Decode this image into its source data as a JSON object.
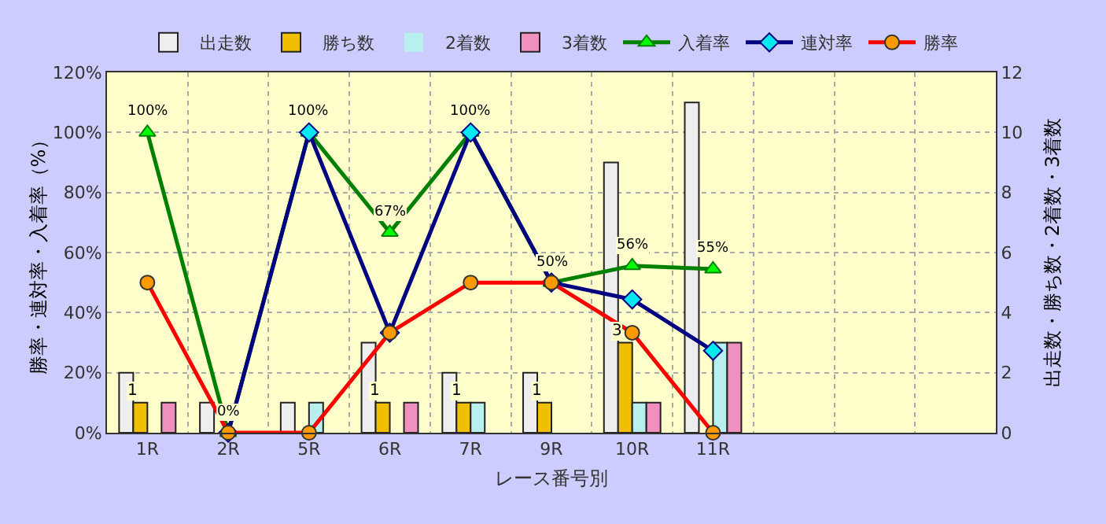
{
  "chart_data": {
    "type": "bar",
    "categories": [
      "1R",
      "2R",
      "5R",
      "6R",
      "7R",
      "9R",
      "10R",
      "11R",
      null,
      null,
      null
    ],
    "xlabel": "レース番号別",
    "ylabel": "勝率・連対率・入着率（%）",
    "y2label": "出走数・勝ち数・2着数・3着数",
    "ylim": [
      0,
      120
    ],
    "yticks": [
      {
        "value": 0,
        "label": "0%"
      },
      {
        "value": 20,
        "label": "20%"
      },
      {
        "value": 40,
        "label": "40%"
      },
      {
        "value": 60,
        "label": "60%"
      },
      {
        "value": 80,
        "label": "80%"
      },
      {
        "value": 100,
        "label": "100%"
      },
      {
        "value": 120,
        "label": "120%"
      }
    ],
    "y2lim": [
      0,
      12
    ],
    "y2ticks": [
      0,
      2,
      4,
      6,
      8,
      10,
      12
    ],
    "grid": true,
    "legend": "top",
    "series": [
      {
        "name": "出走数",
        "axis": "y2",
        "color": "#eeeeee",
        "values": [
          2,
          1,
          1,
          3,
          2,
          2,
          9,
          11,
          null,
          null,
          null
        ]
      },
      {
        "name": "勝ち数",
        "axis": "y2",
        "color": "#f0c000",
        "values": [
          1,
          0,
          0,
          1,
          1,
          1,
          3,
          0,
          null,
          null,
          null
        ],
        "value_labels": [
          "1",
          null,
          null,
          "1",
          "1",
          "1",
          "3",
          null,
          null,
          null,
          null
        ]
      },
      {
        "name": "2着数",
        "axis": "y2",
        "color": "#b8f0f0",
        "values": [
          0,
          0,
          1,
          0,
          1,
          0,
          1,
          3,
          null,
          null,
          null
        ]
      },
      {
        "name": "3着数",
        "axis": "y2",
        "color": "#f090c0",
        "values": [
          1,
          0,
          0,
          1,
          0,
          0,
          1,
          3,
          null,
          null,
          null
        ]
      },
      {
        "name": "入着率",
        "type": "line",
        "color": "#008000",
        "marker": "triangle",
        "values": [
          100,
          0,
          100,
          66.7,
          100,
          50,
          55.6,
          54.5,
          null,
          null,
          null
        ],
        "value_labels": [
          "100%",
          "0%",
          "100%",
          "67%",
          "100%",
          "50%",
          "56%",
          "55%",
          null,
          null,
          null
        ]
      },
      {
        "name": "連対率",
        "type": "line",
        "color": "#000080",
        "marker": "diamond",
        "values": [
          null,
          0,
          100,
          33.3,
          100,
          50,
          44.4,
          27.3,
          null,
          null,
          null
        ]
      },
      {
        "name": "勝率",
        "type": "line",
        "color": "#ff0000",
        "marker": "circle",
        "values": [
          50,
          0,
          0,
          33.3,
          50,
          50,
          33.3,
          0,
          null,
          null,
          null
        ]
      }
    ]
  }
}
